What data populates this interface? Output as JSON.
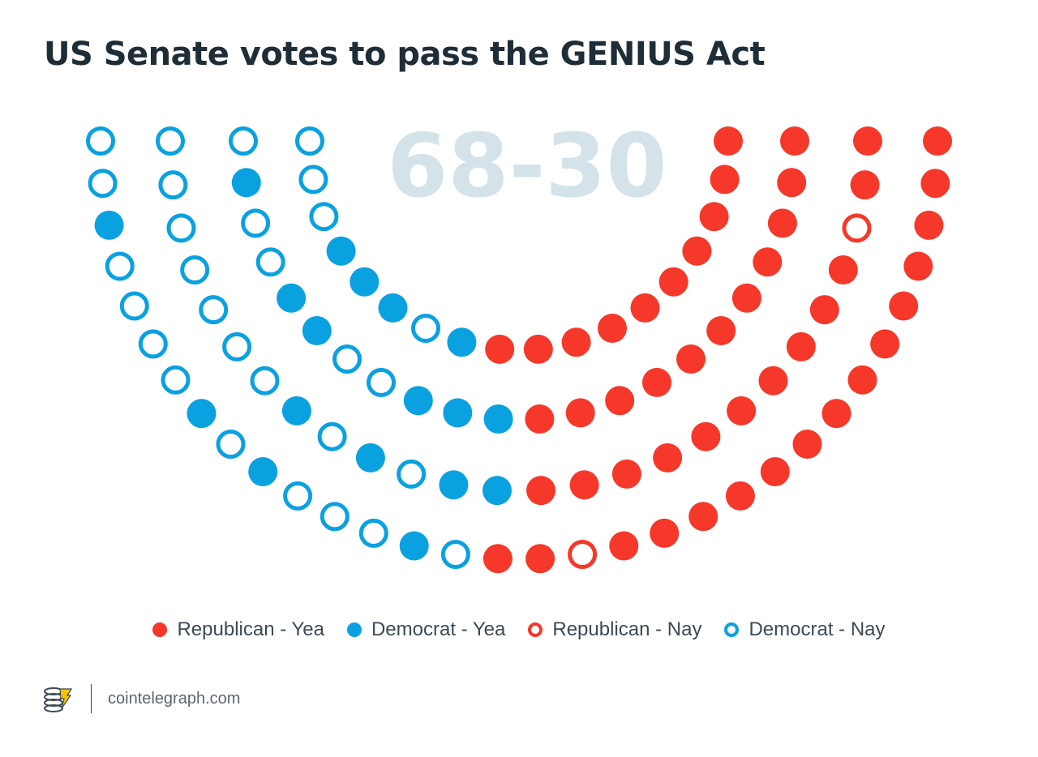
{
  "header": {
    "title": "US Senate votes to pass the GENIUS Act"
  },
  "chart_data": {
    "type": "parliament",
    "total_label": "68-30",
    "series": [
      {
        "key": "r_yea",
        "name": "Republican - Yea",
        "count": 50,
        "color": "#f5382a",
        "filled": true
      },
      {
        "key": "d_yea",
        "name": "Democrat - Yea",
        "count": 18,
        "color": "#0aa1e0",
        "filled": true
      },
      {
        "key": "r_nay",
        "name": "Republican - Nay",
        "count": 2,
        "color": "#f5382a",
        "filled": false
      },
      {
        "key": "d_nay",
        "name": "Democrat - Nay",
        "count": 28,
        "color": "#0aa1e0",
        "filled": false
      }
    ]
  },
  "footer": {
    "site": "cointelegraph.com",
    "logo": "cointelegraph-logo-icon"
  }
}
